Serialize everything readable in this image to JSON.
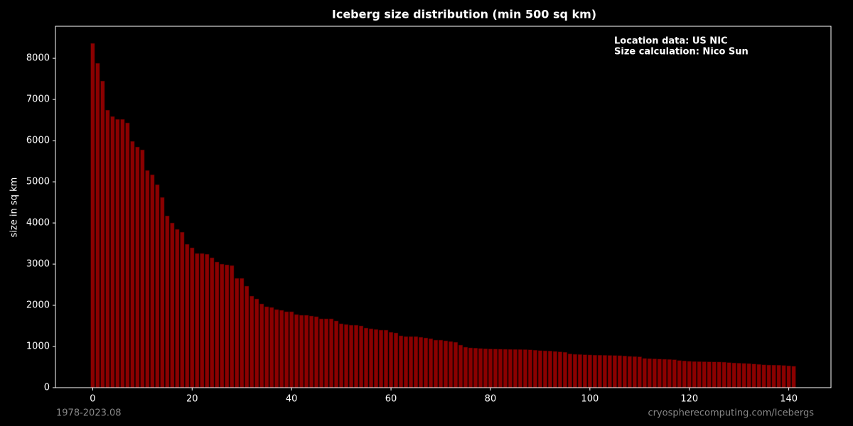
{
  "chart_data": {
    "type": "bar",
    "title": "Iceberg size distribution (min 500 sq km)",
    "ylabel": "size in sq km",
    "annotations": [
      "Location data: US NIC",
      "Size calculation: Nico Sun"
    ],
    "footer_left": "1978-2023.08",
    "footer_right": "cryospherecomputing.com/Icebergs",
    "color": "#8b0000",
    "x": [
      0,
      1,
      2,
      3,
      4,
      5,
      6,
      7,
      8,
      9,
      10,
      11,
      12,
      13,
      14,
      15,
      16,
      17,
      18,
      19,
      20,
      21,
      22,
      23,
      24,
      25,
      26,
      27,
      28,
      29,
      30,
      31,
      32,
      33,
      34,
      35,
      36,
      37,
      38,
      39,
      40,
      41,
      42,
      43,
      44,
      45,
      46,
      47,
      48,
      49,
      50,
      51,
      52,
      53,
      54,
      55,
      56,
      57,
      58,
      59,
      60,
      61,
      62,
      63,
      64,
      65,
      66,
      67,
      68,
      69,
      70,
      71,
      72,
      73,
      74,
      75,
      76,
      77,
      78,
      79,
      80,
      81,
      82,
      83,
      84,
      85,
      86,
      87,
      88,
      89,
      90,
      91,
      92,
      93,
      94,
      95,
      96,
      97,
      98,
      99,
      100,
      101,
      102,
      103,
      104,
      105,
      106,
      107,
      108,
      109,
      110,
      111,
      112,
      113,
      114,
      115,
      116,
      117,
      118,
      119,
      120,
      121,
      122,
      123,
      124,
      125,
      126,
      127,
      128,
      129,
      130,
      131,
      132,
      133,
      134,
      135,
      136,
      137,
      138,
      139,
      140,
      141
    ],
    "values": [
      8362,
      7879,
      7448,
      6741,
      6586,
      6517,
      6517,
      6431,
      5983,
      5845,
      5776,
      5276,
      5172,
      4931,
      4621,
      4172,
      4000,
      3845,
      3776,
      3483,
      3397,
      3259,
      3259,
      3241,
      3155,
      3052,
      3000,
      2983,
      2966,
      2655,
      2655,
      2466,
      2224,
      2155,
      2034,
      1966,
      1948,
      1897,
      1879,
      1845,
      1845,
      1776,
      1759,
      1759,
      1741,
      1724,
      1672,
      1672,
      1672,
      1621,
      1552,
      1534,
      1517,
      1517,
      1500,
      1448,
      1431,
      1414,
      1397,
      1397,
      1345,
      1328,
      1259,
      1241,
      1241,
      1241,
      1224,
      1207,
      1190,
      1155,
      1155,
      1138,
      1121,
      1103,
      1034,
      983,
      966,
      960,
      952,
      945,
      940,
      938,
      935,
      932,
      930,
      928,
      926,
      924,
      920,
      910,
      900,
      895,
      890,
      880,
      870,
      860,
      820,
      810,
      805,
      800,
      795,
      790,
      788,
      786,
      784,
      782,
      778,
      770,
      760,
      755,
      750,
      710,
      705,
      700,
      695,
      690,
      685,
      680,
      660,
      650,
      640,
      635,
      632,
      630,
      628,
      626,
      624,
      620,
      610,
      600,
      595,
      590,
      585,
      575,
      565,
      555,
      550,
      548,
      546,
      540,
      530,
      520
    ],
    "xlim": [
      -7.49,
      148.49
    ],
    "xticks": [
      0,
      20,
      40,
      60,
      80,
      100,
      120,
      140
    ],
    "ylim": [
      0,
      8778
    ],
    "yticks": [
      0,
      1000,
      2000,
      3000,
      4000,
      5000,
      6000,
      7000,
      8000
    ]
  }
}
